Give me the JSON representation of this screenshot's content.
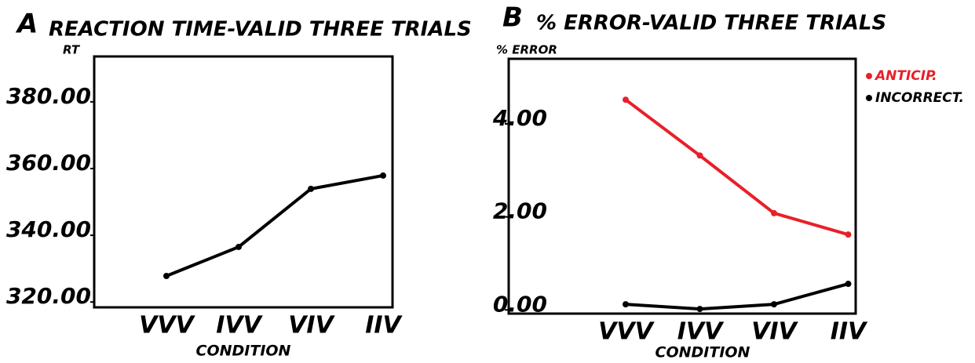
{
  "chart_data": [
    {
      "type": "line",
      "panel": "A",
      "title": "REACTION TIME-VALID THREE TRIALS",
      "y_label": "RT",
      "x_label": "CONDITION",
      "categories": [
        "VVV",
        "IVV",
        "VIV",
        "IIV"
      ],
      "series": [
        {
          "name": null,
          "color": "#000000",
          "values": [
            327.8,
            336.5,
            353.9,
            357.9
          ]
        }
      ],
      "ylim": [
        318.4,
        393.6
      ],
      "yticks": [
        {
          "value": 320,
          "label": "320.00"
        },
        {
          "value": 340,
          "label": "340.00"
        },
        {
          "value": 360,
          "label": "360.00"
        },
        {
          "value": 380,
          "label": "380.00"
        }
      ],
      "grid": false
    },
    {
      "type": "line",
      "panel": "B",
      "title": "% ERROR-VALID THREE TRIALS",
      "y_label": "% ERROR",
      "x_label": "CONDITION",
      "categories": [
        "VVV",
        "IVV",
        "VIV",
        "IIV"
      ],
      "series": [
        {
          "name": "ANTICIP.",
          "color": "#e8202a",
          "values": [
            4.52,
            3.32,
            2.08,
            1.62
          ]
        },
        {
          "name": "INCORRECT.",
          "color": "#000000",
          "values": [
            0.12,
            0.02,
            0.12,
            0.56
          ]
        }
      ],
      "ylim": [
        -0.08,
        5.4
      ],
      "yticks": [
        {
          "value": 0,
          "label": "0.00"
        },
        {
          "value": 2,
          "label": "2.00"
        },
        {
          "value": 4,
          "label": "4.00"
        }
      ],
      "grid": false,
      "legend": "outside-right"
    }
  ]
}
